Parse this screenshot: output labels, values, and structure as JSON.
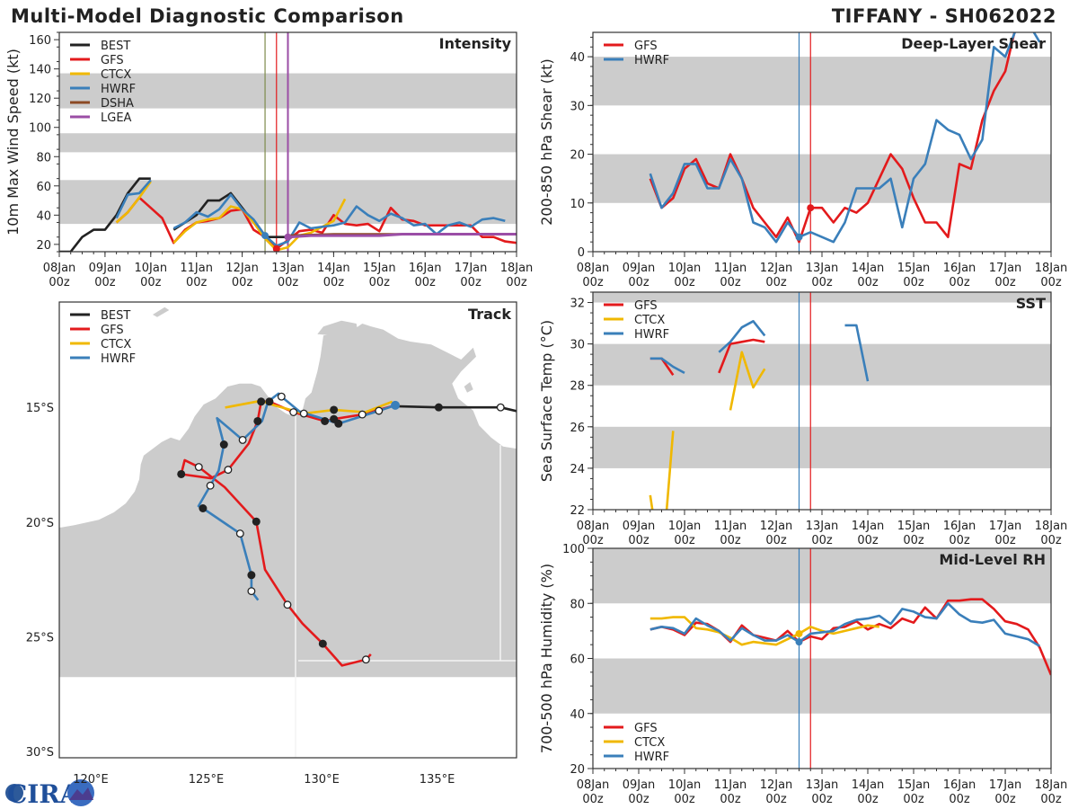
{
  "header": {
    "title": "Multi-Model Diagnostic Comparison",
    "storm": "TIFFANY - SH062022"
  },
  "logo": {
    "text": "CIRA"
  },
  "colors": {
    "BEST": "#222222",
    "GFS": "#e31a1c",
    "CTCX": "#f0b800",
    "HWRF": "#3a7fba",
    "DSHA": "#8c4a24",
    "LGEA": "#9b4ea6",
    "init": "#7d8a4a",
    "band": "#cccccc",
    "land": "#cccccc"
  },
  "time_axis": {
    "ticks": [
      "2022-01-08T00",
      "2022-01-09T00",
      "2022-01-10T00",
      "2022-01-11T00",
      "2022-01-12T00",
      "2022-01-13T00",
      "2022-01-14T00",
      "2022-01-15T00",
      "2022-01-16T00",
      "2022-01-17T00",
      "2022-01-18T00"
    ],
    "labels": [
      [
        "08Jan",
        "00z"
      ],
      [
        "09Jan",
        "00z"
      ],
      [
        "10Jan",
        "00z"
      ],
      [
        "11Jan",
        "00z"
      ],
      [
        "12Jan",
        "00z"
      ],
      [
        "13Jan",
        "00z"
      ],
      [
        "14Jan",
        "00z"
      ],
      [
        "15Jan",
        "00z"
      ],
      [
        "16Jan",
        "00z"
      ],
      [
        "17Jan",
        "00z"
      ],
      [
        "18Jan",
        "00z"
      ]
    ],
    "minor_interval_hours": 6
  },
  "chart_data": [
    {
      "id": "intensity",
      "type": "line",
      "title": "Intensity",
      "ylabel": "10m Max Wind Speed (kt)",
      "xlim": [
        "2022-01-08T00",
        "2022-01-18T00"
      ],
      "ylim": [
        15,
        165
      ],
      "yticks": [
        20,
        40,
        60,
        80,
        100,
        120,
        140,
        160
      ],
      "yminor": 10,
      "bands": [
        [
          34,
          64
        ],
        [
          83,
          96
        ],
        [
          113,
          137
        ]
      ],
      "legend": {
        "position": "top-left",
        "entries": [
          "BEST",
          "GFS",
          "CTCX",
          "HWRF",
          "DSHA",
          "LGEA"
        ]
      },
      "vlines": [
        {
          "time": "2022-01-12T12",
          "color": "init"
        },
        {
          "time": "2022-01-12T18",
          "color": "GFS"
        },
        {
          "time": "2022-01-13T00",
          "color": "LGEA"
        }
      ],
      "series": [
        {
          "name": "BEST",
          "start": "2022-01-08T00",
          "interval_h": 6,
          "values": [
            15,
            15,
            25,
            30,
            30,
            40,
            55,
            65,
            65,
            null,
            30,
            35,
            40,
            50,
            50,
            55,
            45,
            35,
            25,
            25,
            25
          ]
        },
        {
          "name": "GFS",
          "start": "2022-01-09T06",
          "interval_h": 6,
          "values": [
            35,
            42,
            52,
            45,
            38,
            21,
            30,
            35,
            36,
            38,
            43,
            44,
            30,
            25,
            17,
            23,
            29,
            30,
            28,
            40,
            34,
            33,
            34,
            29,
            45,
            37,
            36,
            33,
            33,
            33,
            33,
            33,
            25,
            25,
            22,
            21
          ]
        },
        {
          "name": "CTCX",
          "start": "2022-01-09T06",
          "interval_h": 6,
          "values": [
            35,
            42,
            52,
            63,
            null,
            21,
            29,
            35,
            37,
            38,
            46,
            44,
            35,
            24,
            16,
            18,
            26,
            28,
            32,
            36,
            51
          ]
        },
        {
          "name": "HWRF",
          "start": "2022-01-09T06",
          "interval_h": 6,
          "values": [
            38,
            54,
            55,
            64,
            null,
            31,
            35,
            42,
            39,
            44,
            54,
            44,
            37,
            26,
            19,
            22,
            35,
            31,
            32,
            33,
            35,
            46,
            40,
            36,
            41,
            38,
            33,
            34,
            27,
            33,
            35,
            32,
            37,
            38,
            36
          ]
        },
        {
          "name": "DSHA",
          "start": "2022-01-13T00",
          "interval_h": 24,
          "values": [
            26,
            27,
            27,
            27,
            27,
            27
          ]
        },
        {
          "name": "LGEA",
          "start": "2022-01-13T00",
          "interval_h": 12,
          "values": [
            25,
            26,
            26,
            26,
            26,
            27,
            27,
            27,
            27,
            27,
            27
          ]
        }
      ],
      "markers": [
        {
          "series": "HWRF",
          "time": "2022-01-12T12",
          "value": 26
        },
        {
          "series": "GFS",
          "time": "2022-01-12T18",
          "value": 17
        },
        {
          "series": "LGEA",
          "time": "2022-01-13T00",
          "value": 25
        }
      ]
    },
    {
      "id": "shear",
      "type": "line",
      "title": "Deep-Layer Shear",
      "ylabel": "200-850 hPa Shear (kt)",
      "xlim": [
        "2022-01-08T00",
        "2022-01-18T00"
      ],
      "ylim": [
        0,
        45
      ],
      "yticks": [
        0,
        10,
        20,
        30,
        40
      ],
      "yminor": 2,
      "bands": [
        [
          10,
          20
        ],
        [
          30,
          40
        ]
      ],
      "legend": {
        "position": "top-left",
        "entries": [
          "GFS",
          "HWRF"
        ]
      },
      "vlines": [
        {
          "time": "2022-01-12T12",
          "color": "HWRF"
        },
        {
          "time": "2022-01-12T18",
          "color": "GFS"
        }
      ],
      "series": [
        {
          "name": "GFS",
          "start": "2022-01-09T06",
          "interval_h": 6,
          "values": [
            15,
            9,
            11,
            17,
            19,
            14,
            13,
            20,
            15,
            9,
            6,
            3,
            7,
            2,
            9,
            9,
            6,
            9,
            8,
            10,
            15,
            20,
            17,
            11,
            6,
            6,
            3,
            18,
            17,
            27,
            33,
            37,
            47
          ]
        },
        {
          "name": "HWRF",
          "start": "2022-01-09T06",
          "interval_h": 6,
          "values": [
            16,
            9,
            12,
            18,
            18,
            13,
            13,
            19,
            15,
            6,
            5,
            2,
            6,
            3,
            4,
            3,
            2,
            6,
            13,
            13,
            13,
            15,
            5,
            15,
            18,
            27,
            25,
            24,
            19,
            23,
            42,
            40,
            46,
            47,
            43
          ]
        }
      ],
      "markers": [
        {
          "series": "HWRF",
          "time": "2022-01-12T12",
          "value": 3
        },
        {
          "series": "GFS",
          "time": "2022-01-12T18",
          "value": 9
        }
      ]
    },
    {
      "id": "sst",
      "type": "line",
      "title": "SST",
      "ylabel": "Sea Surface Temp (°C)",
      "xlim": [
        "2022-01-08T00",
        "2022-01-18T00"
      ],
      "ylim": [
        22,
        32.5
      ],
      "yticks": [
        22,
        24,
        26,
        28,
        30,
        32
      ],
      "yminor": 0.5,
      "bands": [
        [
          24,
          26
        ],
        [
          28,
          30
        ],
        [
          32,
          32.5
        ]
      ],
      "legend": {
        "position": "top-left",
        "entries": [
          "GFS",
          "CTCX",
          "HWRF"
        ]
      },
      "vlines": [
        {
          "time": "2022-01-12T12",
          "color": "HWRF"
        },
        {
          "time": "2022-01-12T18",
          "color": "GFS"
        }
      ],
      "series": [
        {
          "name": "GFS",
          "start": "2022-01-09T06",
          "interval_h": 6,
          "values": [
            29.3,
            29.3,
            28.5,
            null,
            null,
            null,
            28.6,
            30.0,
            30.1,
            30.2,
            30.1
          ]
        },
        {
          "name": "CTCX",
          "start": "2022-01-09T06",
          "interval_h": 6,
          "values": [
            22.7,
            19.0,
            25.8,
            null,
            null,
            null,
            null,
            26.8,
            29.6,
            27.9,
            28.8
          ]
        },
        {
          "name": "HWRF",
          "start": "2022-01-09T06",
          "interval_h": 6,
          "values": [
            29.3,
            29.3,
            28.9,
            28.6,
            null,
            null,
            29.6,
            30.1,
            30.8,
            31.1,
            30.4,
            null,
            null,
            null,
            null,
            null,
            null,
            30.9,
            30.9,
            28.2
          ]
        }
      ],
      "markers": []
    },
    {
      "id": "rh",
      "type": "line",
      "title": "Mid-Level RH",
      "ylabel": "700-500 hPa Humidity (%)",
      "xlim": [
        "2022-01-08T00",
        "2022-01-18T00"
      ],
      "ylim": [
        20,
        100
      ],
      "yticks": [
        20,
        40,
        60,
        80,
        100
      ],
      "yminor": 5,
      "bands": [
        [
          40,
          60
        ],
        [
          80,
          100
        ]
      ],
      "legend": {
        "position": "bottom-left",
        "entries": [
          "GFS",
          "CTCX",
          "HWRF"
        ]
      },
      "vlines": [
        {
          "time": "2022-01-12T12",
          "color": "HWRF"
        },
        {
          "time": "2022-01-12T18",
          "color": "GFS"
        }
      ],
      "series": [
        {
          "name": "GFS",
          "start": "2022-01-09T06",
          "interval_h": 6,
          "values": [
            70.5,
            71.5,
            70.5,
            68.5,
            73,
            72.5,
            70,
            66,
            72,
            68.5,
            67.5,
            66.5,
            70,
            66,
            68,
            67,
            71,
            71.5,
            73.5,
            70.5,
            72.5,
            71,
            74.5,
            73,
            78.5,
            74.5,
            81,
            81,
            81.5,
            81.5,
            78,
            73.5,
            72.5,
            70.5,
            64,
            54
          ]
        },
        {
          "name": "CTCX",
          "start": "2022-01-09T06",
          "interval_h": 6,
          "values": [
            74.5,
            74.5,
            75,
            75,
            71,
            70.5,
            69.5,
            67.5,
            65,
            66,
            65.5,
            65,
            67,
            69,
            71.5,
            70,
            69,
            70,
            71,
            72,
            71.5
          ]
        },
        {
          "name": "HWRF",
          "start": "2022-01-09T06",
          "interval_h": 6,
          "values": [
            70.5,
            71.5,
            71,
            69,
            74.5,
            72,
            70,
            66.5,
            71,
            68.5,
            66.5,
            66.5,
            68.5,
            66,
            69,
            69.5,
            70,
            72.5,
            74,
            74.5,
            75.5,
            72.5,
            78,
            77,
            75,
            74.5,
            80,
            76,
            73.5,
            73,
            74,
            69,
            68,
            67,
            64.5
          ]
        }
      ],
      "markers": [
        {
          "series": "HWRF",
          "time": "2022-01-12T12",
          "value": 66
        },
        {
          "series": "CTCX",
          "time": "2022-01-12T12",
          "value": 69
        }
      ]
    },
    {
      "id": "track",
      "type": "map",
      "title": "Track",
      "lonlim": [
        118.64,
        138.44
      ],
      "latlim": [
        -30.27,
        -10.41
      ],
      "lon_ticks": [
        120,
        125,
        130,
        135
      ],
      "lon_labels": [
        "120°E",
        "125°E",
        "130°E",
        "135°E"
      ],
      "lat_ticks": [
        -15,
        -20,
        -25,
        -30
      ],
      "lat_labels": [
        "15°S",
        "20°S",
        "25°S",
        "30°S"
      ],
      "legend": {
        "position": "top-left",
        "entries": [
          "BEST",
          "GFS",
          "CTCX",
          "HWRF"
        ]
      },
      "tracks": [
        {
          "name": "BEST",
          "points": [
            [
              138.44,
              -15.16,
              ""
            ],
            [
              137.75,
              -15.0,
              "open"
            ],
            [
              135.07,
              -15.0,
              "filled"
            ],
            [
              133.19,
              -14.95,
              ""
            ]
          ]
        },
        {
          "name": "GFS",
          "points": [
            [
              133.19,
              -14.91,
              ""
            ],
            [
              131.76,
              -15.31,
              "open"
            ],
            [
              130.53,
              -15.51,
              "filled"
            ],
            [
              130.14,
              -15.6,
              "filled"
            ],
            [
              128.78,
              -15.21,
              "open"
            ],
            [
              127.74,
              -14.75,
              "filled"
            ],
            [
              127.38,
              -14.75,
              "filled"
            ],
            [
              127.23,
              -15.6,
              "filled"
            ],
            [
              126.84,
              -16.58,
              ""
            ],
            [
              125.95,
              -17.72,
              "open"
            ],
            [
              125.21,
              -18.09,
              ""
            ],
            [
              123.92,
              -17.91,
              "filled"
            ],
            [
              124.07,
              -17.3,
              ""
            ],
            [
              124.68,
              -17.6,
              "open"
            ],
            [
              125.8,
              -18.48,
              ""
            ],
            [
              127.17,
              -19.98,
              "filled"
            ],
            [
              127.55,
              -22.07,
              ""
            ],
            [
              128.52,
              -23.6,
              "open"
            ],
            [
              129.17,
              -24.42,
              ""
            ],
            [
              130.05,
              -25.3,
              "filled"
            ],
            [
              130.88,
              -26.25,
              ""
            ],
            [
              131.92,
              -25.99,
              "open"
            ],
            [
              132.13,
              -25.76,
              ""
            ]
          ]
        },
        {
          "name": "CTCX",
          "points": [
            [
              133.06,
              -14.75,
              ""
            ],
            [
              131.9,
              -15.21,
              ""
            ],
            [
              130.53,
              -15.11,
              "filled"
            ],
            [
              129.23,
              -15.27,
              "open"
            ],
            [
              127.94,
              -14.91,
              ""
            ],
            [
              127.38,
              -14.71,
              ""
            ],
            [
              125.82,
              -15.01,
              ""
            ]
          ]
        },
        {
          "name": "HWRF",
          "points": [
            [
              133.19,
              -14.91,
              ""
            ],
            [
              132.48,
              -15.15,
              "open"
            ],
            [
              130.73,
              -15.71,
              "filled"
            ],
            [
              129.04,
              -15.18,
              ""
            ],
            [
              128.26,
              -14.53,
              "open"
            ],
            [
              128.13,
              -14.4,
              ""
            ],
            [
              127.68,
              -14.75,
              ""
            ],
            [
              127.42,
              -15.6,
              ""
            ],
            [
              126.58,
              -16.42,
              "open"
            ],
            [
              125.47,
              -15.47,
              ""
            ],
            [
              125.77,
              -16.62,
              "filled"
            ],
            [
              125.54,
              -17.76,
              ""
            ],
            [
              125.18,
              -18.41,
              "open"
            ],
            [
              124.67,
              -19.3,
              ""
            ],
            [
              124.86,
              -19.4,
              "filled"
            ],
            [
              126.47,
              -20.5,
              "open"
            ],
            [
              126.96,
              -22.31,
              "filled"
            ],
            [
              126.96,
              -23.01,
              "open"
            ],
            [
              127.25,
              -23.4,
              ""
            ]
          ]
        }
      ]
    }
  ]
}
